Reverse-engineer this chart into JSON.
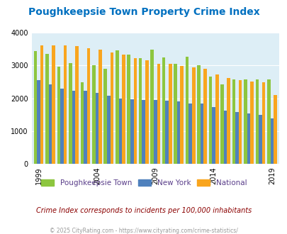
{
  "title": "Poughkeepsie Town Property Crime Index",
  "subtitle": "Crime Index corresponds to incidents per 100,000 inhabitants",
  "copyright": "© 2025 CityRating.com - https://www.cityrating.com/crime-statistics/",
  "years": [
    1999,
    2000,
    2001,
    2002,
    2003,
    2004,
    2005,
    2006,
    2007,
    2008,
    2009,
    2010,
    2011,
    2012,
    2013,
    2014,
    2015,
    2016,
    2017,
    2018,
    2019
  ],
  "poughkeepsie": [
    3440,
    3360,
    2975,
    3080,
    2490,
    3000,
    2910,
    3470,
    3340,
    3235,
    3490,
    3255,
    3050,
    3260,
    3000,
    2670,
    2430,
    2570,
    2570,
    2570,
    2570
  ],
  "new_york": [
    2560,
    2430,
    2300,
    2230,
    2220,
    2160,
    2070,
    2000,
    1980,
    1950,
    1940,
    1920,
    1900,
    1850,
    1830,
    1730,
    1630,
    1570,
    1530,
    1500,
    1380
  ],
  "national": [
    3610,
    3620,
    3610,
    3600,
    3520,
    3480,
    3400,
    3340,
    3220,
    3160,
    3050,
    3060,
    2980,
    2950,
    2900,
    2720,
    2620,
    2560,
    2510,
    2480,
    2090
  ],
  "colors": {
    "poughkeepsie": "#8dc63f",
    "new_york": "#4f81bd",
    "national": "#f9a51e"
  },
  "ylim": [
    0,
    4000
  ],
  "yticks": [
    0,
    1000,
    2000,
    3000,
    4000
  ],
  "bg_color": "#ddeef6",
  "title_color": "#0070c0",
  "subtitle_color": "#8b0000",
  "copyright_color": "#999999",
  "legend_labels": [
    "Poughkeepsie Town",
    "New York",
    "National"
  ],
  "legend_text_color": "#5a3e8a",
  "x_tick_years": [
    1999,
    2004,
    2009,
    2014,
    2019
  ]
}
